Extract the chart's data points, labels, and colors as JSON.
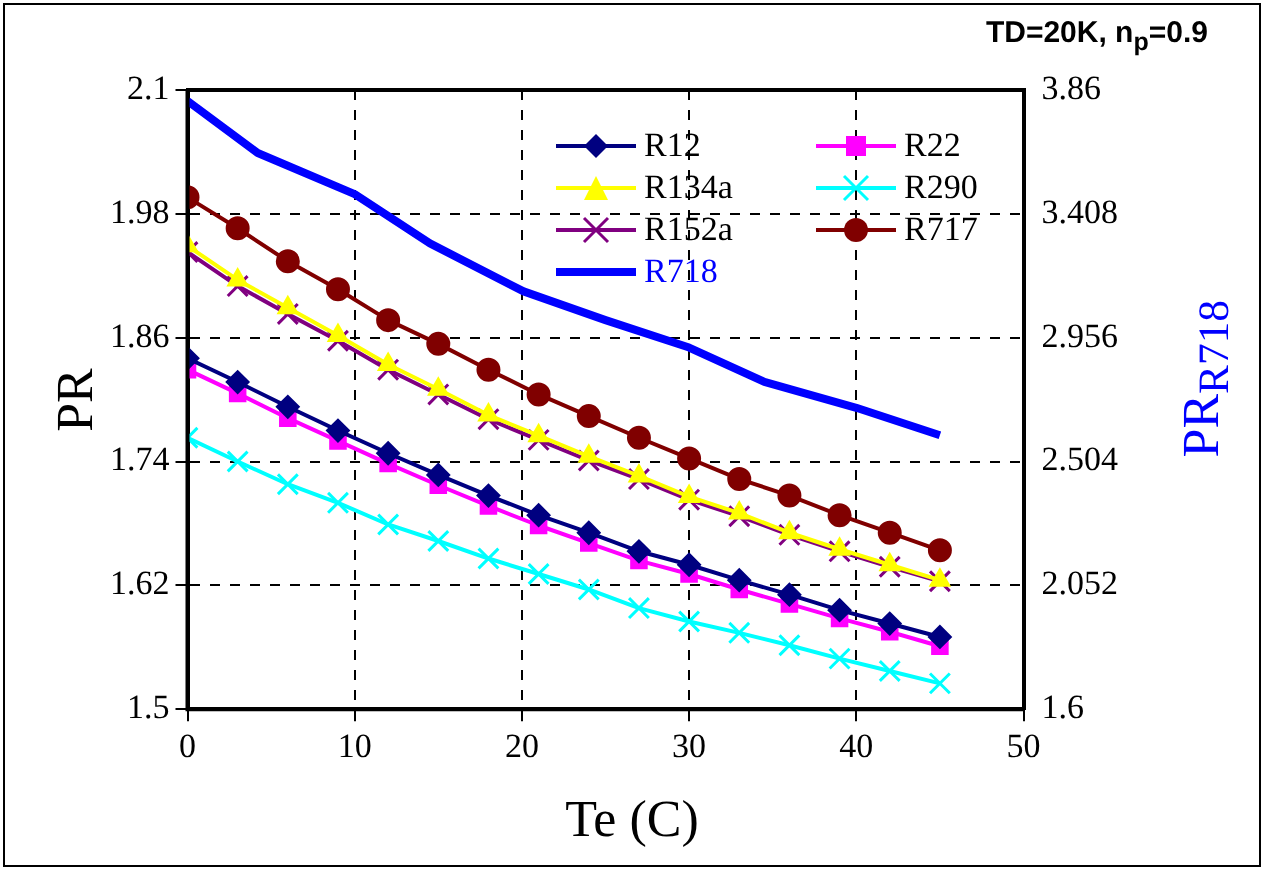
{
  "chart_data": {
    "type": "line",
    "title": "TD=20K,  n$_{p}$=0.9",
    "xlabel": "Te (C)",
    "ylabel": "PR",
    "y2label": "PR$_{R718}$",
    "x": [
      0,
      3,
      6,
      9,
      12,
      15,
      18,
      21,
      24,
      27,
      30,
      33,
      36,
      39,
      42,
      45
    ],
    "xlim": [
      0,
      50
    ],
    "xticks": [
      0,
      10,
      20,
      30,
      40,
      50
    ],
    "ylim": [
      1.5,
      2.1
    ],
    "yticks": [
      1.5,
      1.62,
      1.74,
      1.86,
      1.98,
      2.1
    ],
    "y2lim": [
      1.6,
      3.86
    ],
    "y2ticks": [
      1.6,
      2.052,
      2.504,
      2.956,
      3.408,
      3.86
    ],
    "grid": true,
    "legend": "top right",
    "line_style": "solid",
    "series": [
      {
        "name": "R12",
        "color": "#000080",
        "marker": "diamond",
        "values": [
          1.84,
          1.817,
          1.793,
          1.77,
          1.748,
          1.727,
          1.707,
          1.688,
          1.671,
          1.653,
          1.64,
          1.625,
          1.611,
          1.596,
          1.583,
          1.57
        ]
      },
      {
        "name": "R22",
        "color": "#ff00ff",
        "marker": "square",
        "values": [
          1.829,
          1.806,
          1.782,
          1.76,
          1.738,
          1.717,
          1.697,
          1.678,
          1.661,
          1.644,
          1.631,
          1.616,
          1.602,
          1.588,
          1.575,
          1.561
        ]
      },
      {
        "name": "R134a",
        "color": "#ffff00",
        "marker": "triangle",
        "values": [
          1.949,
          1.916,
          1.889,
          1.862,
          1.834,
          1.81,
          1.785,
          1.765,
          1.745,
          1.726,
          1.706,
          1.69,
          1.671,
          1.655,
          1.64,
          1.625
        ]
      },
      {
        "name": "R290",
        "color": "#00ffff",
        "marker": "cross",
        "values": [
          1.763,
          1.74,
          1.718,
          1.7,
          1.679,
          1.663,
          1.646,
          1.631,
          1.616,
          1.598,
          1.585,
          1.574,
          1.562,
          1.549,
          1.537,
          1.525
        ]
      },
      {
        "name": "R152a",
        "color": "#800080",
        "marker": "cross",
        "values": [
          1.943,
          1.91,
          1.883,
          1.857,
          1.829,
          1.805,
          1.781,
          1.761,
          1.741,
          1.723,
          1.703,
          1.687,
          1.669,
          1.653,
          1.638,
          1.624
        ]
      },
      {
        "name": "R717",
        "color": "#800000",
        "marker": "circle",
        "values": [
          1.996,
          1.966,
          1.934,
          1.907,
          1.877,
          1.854,
          1.829,
          1.805,
          1.784,
          1.763,
          1.743,
          1.723,
          1.707,
          1.688,
          1.671,
          1.654
        ]
      },
      {
        "name": "R718",
        "color": "#0000ff",
        "marker": "none",
        "axis": "y2",
        "x": [
          0,
          4.2,
          10,
          14.5,
          20.1,
          25,
          30,
          34.5,
          40,
          45
        ],
        "values": [
          3.82,
          3.63,
          3.48,
          3.3,
          3.125,
          3.02,
          2.92,
          2.795,
          2.7,
          2.6
        ]
      }
    ]
  }
}
